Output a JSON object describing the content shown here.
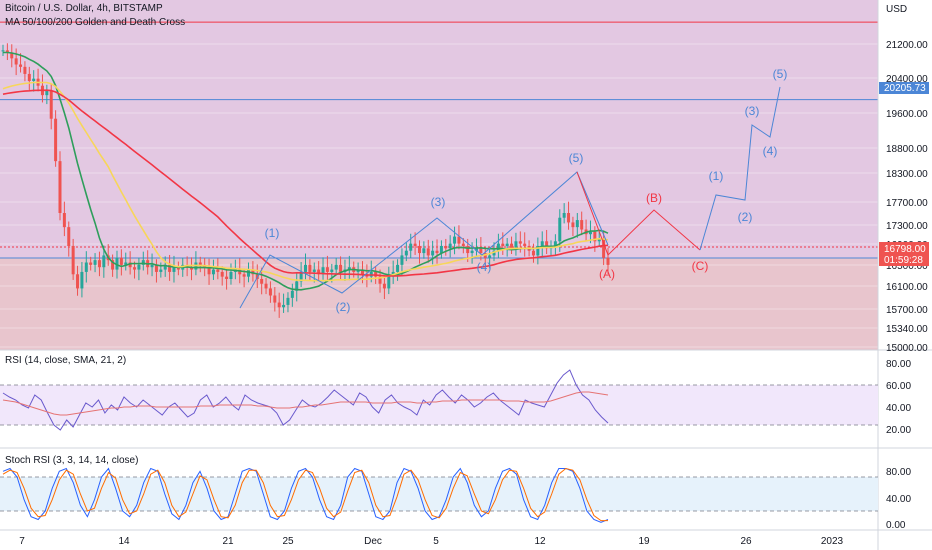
{
  "header": {
    "title": "Bitcoin / U.S. Dollar, 4h, BITSTAMP",
    "indicator": "MA 50/100/200 Golden and Death Cross",
    "currency": "USD"
  },
  "price_tags": {
    "level_line": "20205.73",
    "last_price": "16798.00",
    "countdown": "01:59:28"
  },
  "rsi_label": "RSI (14, close, SMA, 21, 2)",
  "stoch_label": "Stoch RSI (3, 3, 14, 14, close)",
  "colors": {
    "zone_top": "#e3c8e2",
    "zone_bottom": "#e8c5cd",
    "candle_up": "#26a69a",
    "candle_down": "#ef5350",
    "ma50": "#2e9e5b",
    "ma100": "#f7d65a",
    "ma200": "#f23645",
    "wave_blue": "#4c86d6",
    "wave_red": "#f23645",
    "rsi_line": "#6a5acd",
    "rsi_ma": "#e57373",
    "stoch_k": "#2962ff",
    "stoch_d": "#ff6d00"
  },
  "chart_data": [
    {
      "type": "candlestick",
      "title": "Bitcoin / U.S. Dollar, 4h, BITSTAMP",
      "ylabel": "USD",
      "ylim": [
        15000,
        22000
      ],
      "y_ticks": [
        "21200.00",
        "20400.00",
        "19600.00",
        "18800.00",
        "18300.00",
        "17700.00",
        "17300.00",
        "16900.00",
        "16500.00",
        "16100.00",
        "15700.00",
        "15340.00",
        "15000.00"
      ],
      "x_ticks": [
        "7",
        "14",
        "21",
        "25",
        "Dec",
        "5",
        "12",
        "19",
        "26",
        "2023"
      ],
      "ohlc_close": [
        21250,
        21200,
        21080,
        20950,
        20900,
        20750,
        20600,
        20650,
        20500,
        20300,
        20400,
        19800,
        18900,
        17800,
        17500,
        17100,
        16500,
        16200,
        16550,
        16750,
        16700,
        16800,
        16650,
        16900,
        16800,
        16600,
        16850,
        16700,
        16750,
        16650,
        16600,
        16700,
        16800,
        16650,
        16700,
        16550,
        16600,
        16700,
        16550,
        16650,
        16600,
        16700,
        16650,
        16600,
        16750,
        16700,
        16650,
        16500,
        16600,
        16550,
        16450,
        16400,
        16550,
        16600,
        16500,
        16450,
        16600,
        16500,
        16400,
        16300,
        16200,
        16050,
        15900,
        15800,
        15850,
        16000,
        16150,
        16350,
        16550,
        16700,
        16550,
        16600,
        16500,
        16650,
        16550,
        16600,
        16700,
        16550,
        16600,
        16650,
        16550,
        16600,
        16500,
        16450,
        16550,
        16450,
        16300,
        16200,
        16450,
        16550,
        16700,
        16900,
        17000,
        17150,
        17100,
        16950,
        17050,
        16900,
        17000,
        16950,
        17100,
        17050,
        17150,
        17300,
        17150,
        17100,
        16950,
        17000,
        17050,
        16950,
        16850,
        16900,
        17000,
        17150,
        17100,
        17150,
        17050,
        17200,
        17150,
        17100,
        17000,
        16900,
        17100,
        17200,
        17050,
        17100,
        17200,
        17700,
        17800,
        17600,
        17500,
        17650,
        17450,
        17350,
        17400,
        17200,
        17250,
        16850,
        16700
      ],
      "ma": [
        {
          "name": "MA 50"
        },
        {
          "name": "MA 100"
        },
        {
          "name": "MA 200"
        }
      ],
      "horizontal_lines": [
        {
          "value": 20205.73,
          "color": "#4c86d6"
        },
        {
          "value": 21850,
          "color": "#f23645"
        },
        {
          "value": 16700,
          "color": "#4c86d6"
        },
        {
          "value": 16798,
          "color": "#f23645",
          "dashed": true
        }
      ],
      "wave_labels_blue": [
        "(1)",
        "(2)",
        "(3)",
        "(4)",
        "(5)",
        "(1)",
        "(2)",
        "(3)",
        "(4)",
        "(5)"
      ],
      "wave_labels_red": [
        "(A)",
        "(B)",
        "(C)"
      ]
    },
    {
      "type": "line",
      "title": "RSI (14, close, SMA, 21, 2)",
      "ylim": [
        15,
        95
      ],
      "y_ticks": [
        "80.00",
        "60.00",
        "40.00",
        "20.00"
      ],
      "bands": [
        70,
        30
      ],
      "series": [
        {
          "name": "RSI",
          "values": [
            62,
            58,
            55,
            50,
            47,
            60,
            55,
            42,
            30,
            25,
            35,
            28,
            40,
            52,
            48,
            55,
            42,
            50,
            45,
            58,
            52,
            48,
            55,
            50,
            45,
            40,
            48,
            52,
            45,
            38,
            42,
            55,
            60,
            48,
            52,
            58,
            50,
            45,
            60,
            55,
            52,
            50,
            48,
            42,
            30,
            35,
            45,
            55,
            50,
            48,
            52,
            58,
            65,
            60,
            55,
            50,
            62,
            58,
            48,
            42,
            55,
            60,
            52,
            48,
            45,
            40,
            55,
            50,
            60,
            65,
            58,
            52,
            60,
            55,
            48,
            52,
            58,
            62,
            55,
            50,
            45,
            40,
            55,
            52,
            50,
            48,
            60,
            72,
            80,
            85,
            70,
            60,
            55,
            45,
            38,
            32
          ]
        },
        {
          "name": "SMA",
          "values": [
            55,
            54,
            53,
            51,
            49,
            47,
            45,
            43,
            41,
            40,
            40,
            41,
            42,
            43,
            44,
            45,
            46,
            47,
            47,
            48,
            48,
            49,
            49,
            49,
            48,
            48,
            48,
            48,
            48,
            48,
            48,
            49,
            49,
            49,
            50,
            50,
            50,
            50,
            50,
            50,
            49,
            49,
            48,
            47,
            47,
            47,
            48,
            48,
            49,
            50,
            50,
            51,
            52,
            53,
            53,
            53,
            53,
            53,
            52,
            52,
            52,
            52,
            53,
            53,
            53,
            52,
            52,
            53,
            53,
            54,
            54,
            54,
            55,
            55,
            55,
            55,
            55,
            55,
            55,
            54,
            54,
            54,
            53,
            53,
            53,
            53,
            54,
            56,
            58,
            60,
            62,
            63,
            63,
            62,
            61,
            60
          ]
        }
      ]
    },
    {
      "type": "line",
      "title": "Stoch RSI (3, 3, 14, 14, close)",
      "ylim": [
        -10,
        110
      ],
      "y_ticks": [
        "80.00",
        "40.00",
        "0.00"
      ],
      "bands": [
        80,
        20
      ],
      "series": [
        {
          "name": "K",
          "values": [
            90,
            95,
            80,
            40,
            10,
            5,
            20,
            60,
            90,
            95,
            70,
            30,
            10,
            40,
            80,
            95,
            60,
            20,
            10,
            30,
            70,
            95,
            90,
            50,
            15,
            5,
            30,
            70,
            90,
            60,
            20,
            5,
            10,
            50,
            90,
            95,
            90,
            50,
            10,
            5,
            20,
            60,
            90,
            95,
            80,
            40,
            10,
            5,
            30,
            80,
            95,
            90,
            50,
            10,
            5,
            20,
            70,
            95,
            90,
            60,
            20,
            5,
            10,
            40,
            80,
            95,
            70,
            30,
            10,
            20,
            60,
            90,
            95,
            85,
            40,
            10,
            5,
            30,
            70,
            95,
            95,
            90,
            60,
            20,
            5,
            0,
            5
          ]
        },
        {
          "name": "D",
          "values": [
            85,
            92,
            88,
            60,
            25,
            10,
            12,
            40,
            75,
            92,
            85,
            50,
            20,
            25,
            60,
            88,
            78,
            40,
            15,
            20,
            50,
            85,
            92,
            70,
            30,
            10,
            18,
            50,
            82,
            75,
            40,
            10,
            8,
            30,
            70,
            92,
            92,
            70,
            30,
            10,
            12,
            40,
            75,
            92,
            88,
            60,
            25,
            10,
            18,
            55,
            88,
            92,
            70,
            30,
            10,
            12,
            45,
            85,
            92,
            75,
            40,
            12,
            8,
            25,
            60,
            88,
            82,
            50,
            20,
            15,
            40,
            75,
            92,
            90,
            60,
            25,
            10,
            18,
            50,
            85,
            95,
            92,
            75,
            40,
            12,
            3,
            3
          ]
        }
      ]
    }
  ]
}
